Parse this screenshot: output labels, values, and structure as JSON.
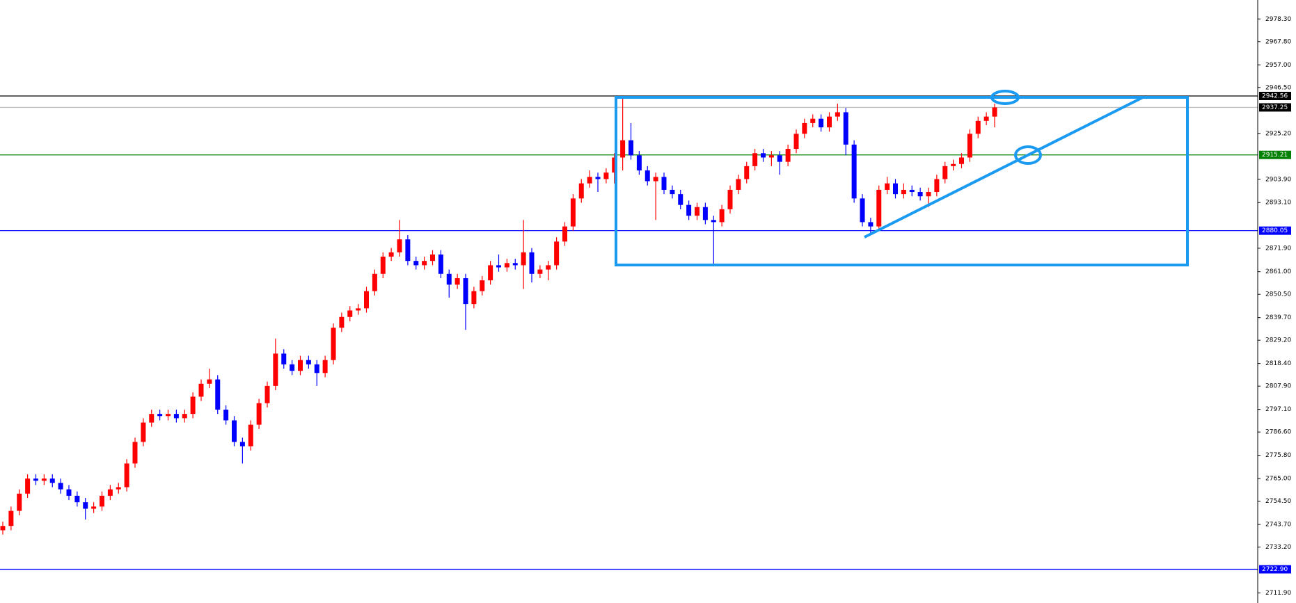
{
  "chart_data": {
    "type": "candlestick",
    "bull_color": "#ff0000",
    "bear_color": "#0000ff",
    "ylim": [
      2707.25,
      2987.1
    ],
    "yticks": [
      {
        "value": 2978.3,
        "label": "2978.30"
      },
      {
        "value": 2967.8,
        "label": "2967.80"
      },
      {
        "value": 2957.0,
        "label": "2957.00"
      },
      {
        "value": 2946.5,
        "label": "2946.50"
      },
      {
        "value": 2925.2,
        "label": "2925.20"
      },
      {
        "value": 2903.9,
        "label": "2903.90"
      },
      {
        "value": 2893.1,
        "label": "2893.10"
      },
      {
        "value": 2871.9,
        "label": "2871.90"
      },
      {
        "value": 2861.0,
        "label": "2861.00"
      },
      {
        "value": 2850.5,
        "label": "2850.50"
      },
      {
        "value": 2839.7,
        "label": "2839.70"
      },
      {
        "value": 2829.2,
        "label": "2829.20"
      },
      {
        "value": 2818.4,
        "label": "2818.40"
      },
      {
        "value": 2807.9,
        "label": "2807.90"
      },
      {
        "value": 2797.1,
        "label": "2797.10"
      },
      {
        "value": 2786.6,
        "label": "2786.60"
      },
      {
        "value": 2775.8,
        "label": "2775.80"
      },
      {
        "value": 2765.0,
        "label": "2765.00"
      },
      {
        "value": 2754.5,
        "label": "2754.50"
      },
      {
        "value": 2743.7,
        "label": "2743.70"
      },
      {
        "value": 2733.2,
        "label": "2733.20"
      },
      {
        "value": 2711.9,
        "label": "2711.90"
      }
    ],
    "price_lines": [
      {
        "value": 2942.56,
        "color": "#000000"
      },
      {
        "value": 2937.25,
        "color": "#c0c0c0"
      },
      {
        "value": 2915.21,
        "color": "#008000"
      },
      {
        "value": 2880.05,
        "color": "#0000ff"
      },
      {
        "value": 2722.9,
        "label": "2722.90",
        "color": "#0000ff"
      }
    ],
    "ohlc": [
      [
        2741,
        2745,
        2739,
        2743
      ],
      [
        2743,
        2752,
        2741,
        2750
      ],
      [
        2750,
        2760,
        2748,
        2758
      ],
      [
        2758,
        2767,
        2756,
        2765
      ],
      [
        2765,
        2767,
        2762,
        2764
      ],
      [
        2764,
        2767,
        2762,
        2765
      ],
      [
        2765,
        2767,
        2761,
        2763
      ],
      [
        2763,
        2765,
        2758,
        2760
      ],
      [
        2760,
        2762,
        2755,
        2757
      ],
      [
        2757,
        2759,
        2752,
        2754
      ],
      [
        2754,
        2756,
        2746,
        2751
      ],
      [
        2751,
        2754,
        2749,
        2752
      ],
      [
        2752,
        2759,
        2750,
        2757
      ],
      [
        2757,
        2762,
        2755,
        2760
      ],
      [
        2760,
        2763,
        2758,
        2761
      ],
      [
        2761,
        2774,
        2759,
        2772
      ],
      [
        2772,
        2784,
        2770,
        2782
      ],
      [
        2782,
        2793,
        2780,
        2791
      ],
      [
        2791,
        2797,
        2789,
        2795
      ],
      [
        2795,
        2797,
        2792,
        2794
      ],
      [
        2794,
        2797,
        2792,
        2795
      ],
      [
        2795,
        2797,
        2791,
        2793
      ],
      [
        2793,
        2797,
        2791,
        2795
      ],
      [
        2795,
        2805,
        2793,
        2803
      ],
      [
        2803,
        2811,
        2801,
        2809
      ],
      [
        2809,
        2816,
        2807,
        2811
      ],
      [
        2811,
        2813,
        2795,
        2797
      ],
      [
        2797,
        2799,
        2790,
        2792
      ],
      [
        2792,
        2794,
        2780,
        2782
      ],
      [
        2782,
        2784,
        2772,
        2780
      ],
      [
        2780,
        2792,
        2778,
        2790
      ],
      [
        2790,
        2802,
        2788,
        2800
      ],
      [
        2800,
        2810,
        2798,
        2808
      ],
      [
        2808,
        2830,
        2806,
        2823
      ],
      [
        2823,
        2825,
        2816,
        2818
      ],
      [
        2818,
        2820,
        2813,
        2815
      ],
      [
        2815,
        2822,
        2813,
        2820
      ],
      [
        2820,
        2822,
        2816,
        2818
      ],
      [
        2818,
        2820,
        2808,
        2814
      ],
      [
        2814,
        2822,
        2812,
        2820
      ],
      [
        2820,
        2837,
        2818,
        2835
      ],
      [
        2835,
        2842,
        2833,
        2840
      ],
      [
        2840,
        2845,
        2838,
        2843
      ],
      [
        2843,
        2846,
        2841,
        2844
      ],
      [
        2844,
        2854,
        2842,
        2852
      ],
      [
        2852,
        2862,
        2850,
        2860
      ],
      [
        2860,
        2870,
        2858,
        2868
      ],
      [
        2868,
        2872,
        2866,
        2870
      ],
      [
        2870,
        2885,
        2868,
        2876
      ],
      [
        2876,
        2878,
        2864,
        2866
      ],
      [
        2866,
        2868,
        2862,
        2864
      ],
      [
        2864,
        2868,
        2862,
        2866
      ],
      [
        2866,
        2871,
        2864,
        2869
      ],
      [
        2869,
        2871,
        2858,
        2860
      ],
      [
        2860,
        2862,
        2849,
        2855
      ],
      [
        2855,
        2860,
        2853,
        2858
      ],
      [
        2858,
        2860,
        2834,
        2846
      ],
      [
        2846,
        2854,
        2844,
        2852
      ],
      [
        2852,
        2859,
        2850,
        2857
      ],
      [
        2857,
        2866,
        2855,
        2864
      ],
      [
        2864,
        2869,
        2861,
        2863
      ],
      [
        2863,
        2867,
        2861,
        2865
      ],
      [
        2865,
        2867,
        2862,
        2864
      ],
      [
        2864,
        2885,
        2853,
        2870
      ],
      [
        2870,
        2872,
        2856,
        2860
      ],
      [
        2860,
        2864,
        2858,
        2862
      ],
      [
        2862,
        2866,
        2857,
        2864
      ],
      [
        2864,
        2877,
        2862,
        2875
      ],
      [
        2875,
        2884,
        2873,
        2882
      ],
      [
        2882,
        2897,
        2880,
        2895
      ],
      [
        2895,
        2904,
        2893,
        2902
      ],
      [
        2902,
        2908,
        2900,
        2905
      ],
      [
        2905,
        2907,
        2898,
        2904
      ],
      [
        2904,
        2909,
        2902,
        2907
      ],
      [
        2907,
        2916,
        2902,
        2914
      ],
      [
        2914,
        2942.5,
        2908,
        2922
      ],
      [
        2922,
        2930,
        2913,
        2915
      ],
      [
        2915,
        2917,
        2906,
        2908
      ],
      [
        2908,
        2910,
        2901,
        2903
      ],
      [
        2903,
        2907,
        2885,
        2905
      ],
      [
        2905,
        2907,
        2897,
        2899
      ],
      [
        2899,
        2901,
        2895,
        2897
      ],
      [
        2897,
        2899,
        2890,
        2892
      ],
      [
        2892,
        2894,
        2885,
        2887
      ],
      [
        2887,
        2893,
        2885,
        2891
      ],
      [
        2891,
        2893,
        2883,
        2885
      ],
      [
        2885,
        2887,
        2864,
        2884
      ],
      [
        2884,
        2892,
        2882,
        2890
      ],
      [
        2890,
        2901,
        2888,
        2899
      ],
      [
        2899,
        2906,
        2897,
        2904
      ],
      [
        2904,
        2912,
        2902,
        2910
      ],
      [
        2910,
        2918,
        2908,
        2916
      ],
      [
        2916,
        2918,
        2912,
        2914
      ],
      [
        2914,
        2917,
        2910,
        2915
      ],
      [
        2915,
        2917,
        2906,
        2912
      ],
      [
        2912,
        2920,
        2910,
        2918
      ],
      [
        2918,
        2927,
        2916,
        2925
      ],
      [
        2925,
        2932,
        2923,
        2930
      ],
      [
        2930,
        2934,
        2928,
        2932
      ],
      [
        2932,
        2934,
        2926,
        2928
      ],
      [
        2928,
        2935,
        2926,
        2933
      ],
      [
        2933,
        2939,
        2931,
        2935
      ],
      [
        2935,
        2937,
        2915,
        2920
      ],
      [
        2920,
        2922,
        2893,
        2895
      ],
      [
        2895,
        2897,
        2882,
        2884
      ],
      [
        2884,
        2886,
        2878,
        2882
      ],
      [
        2882,
        2901,
        2880,
        2899
      ],
      [
        2899,
        2905,
        2897,
        2902
      ],
      [
        2902,
        2904,
        2895,
        2897
      ],
      [
        2897,
        2902,
        2895,
        2899
      ],
      [
        2899,
        2901,
        2896,
        2898
      ],
      [
        2898,
        2900,
        2894,
        2896
      ],
      [
        2896,
        2900,
        2891,
        2898
      ],
      [
        2898,
        2906,
        2896,
        2904
      ],
      [
        2904,
        2912,
        2902,
        2910
      ],
      [
        2910,
        2913,
        2908,
        2911
      ],
      [
        2911,
        2916,
        2909,
        2914
      ],
      [
        2914,
        2927,
        2912,
        2925
      ],
      [
        2925,
        2933,
        2923,
        2931
      ],
      [
        2931,
        2935,
        2929,
        2933
      ],
      [
        2933,
        2939,
        2928,
        2937.25
      ]
    ]
  }
}
